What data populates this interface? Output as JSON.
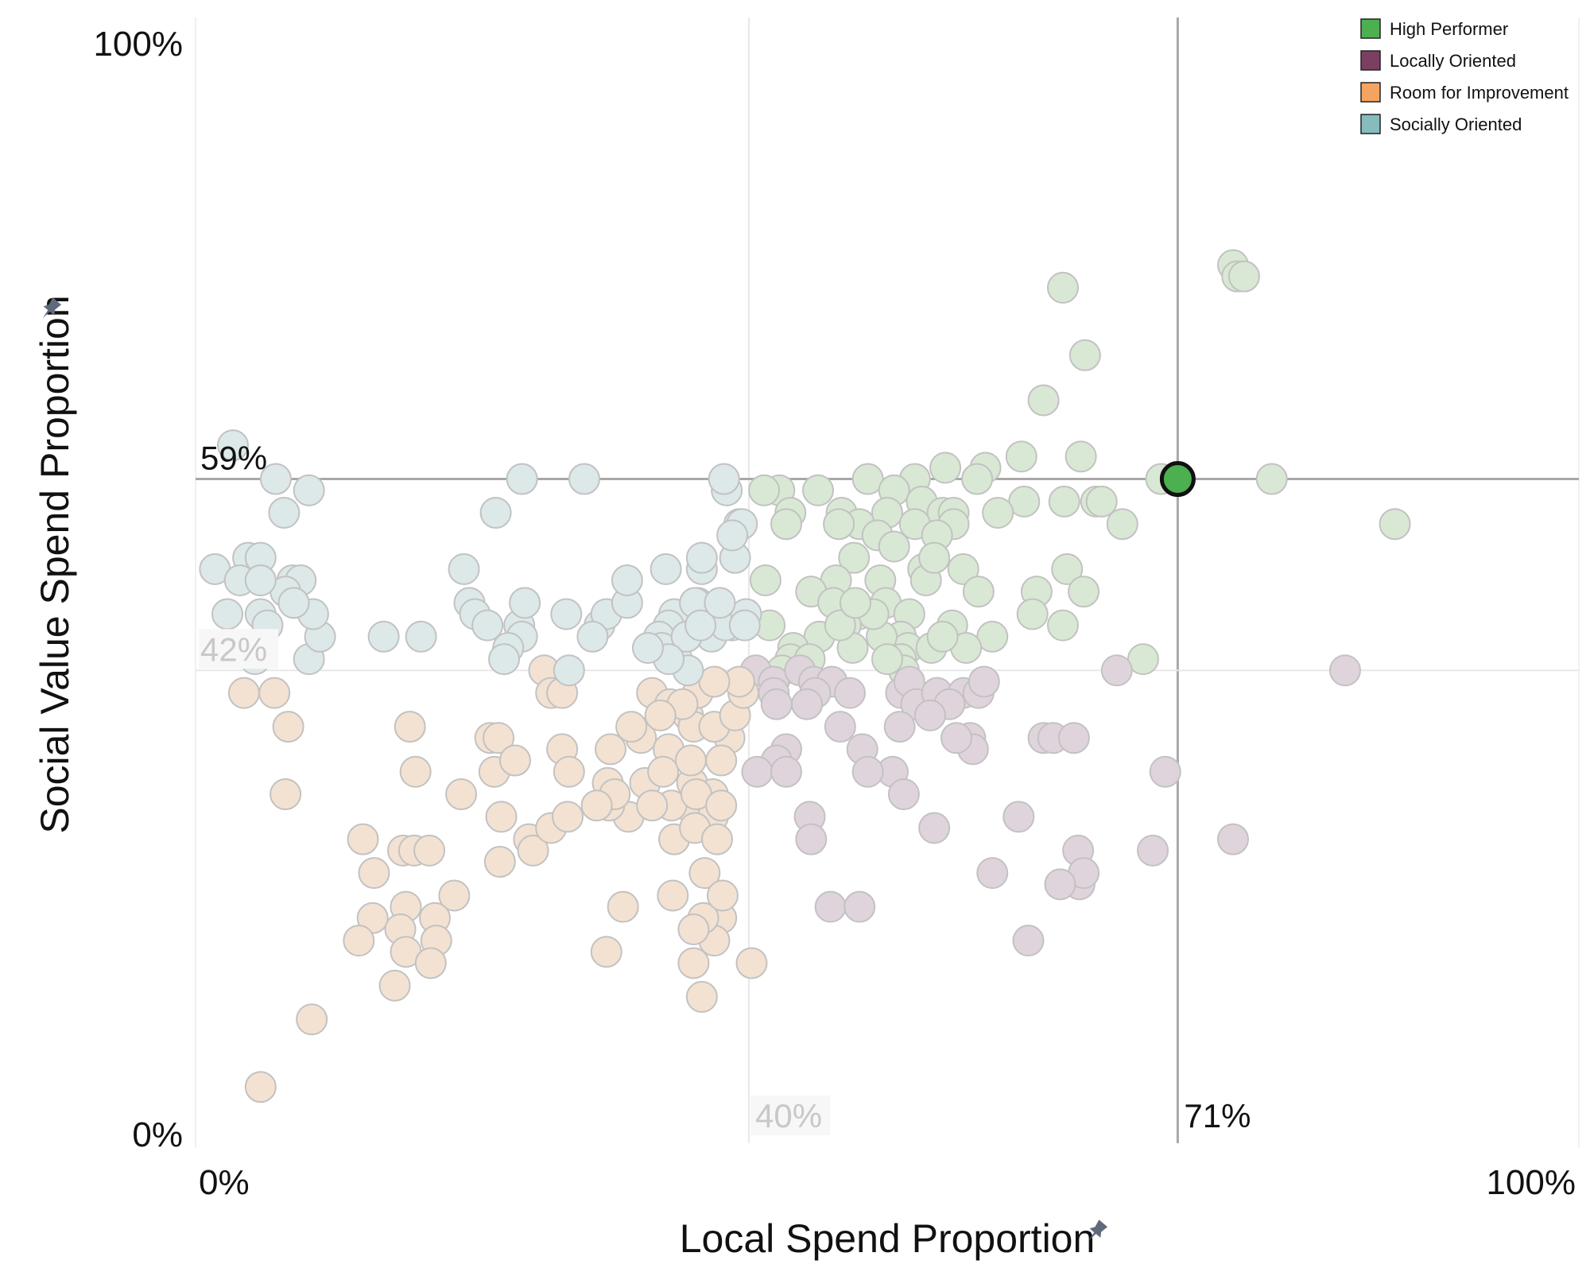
{
  "chart_data": {
    "type": "scatter",
    "xlabel": "Local Spend Proportion",
    "ylabel": "Social Value Spend Proportion",
    "xlim": [
      0,
      1
    ],
    "ylim": [
      0,
      1
    ],
    "x_ticks": [
      {
        "value": 0,
        "label": "0%"
      },
      {
        "value": 1,
        "label": "100%"
      }
    ],
    "y_ticks": [
      {
        "value": 0,
        "label": "0%"
      },
      {
        "value": 1,
        "label": "100%"
      }
    ],
    "reference_lines": {
      "vertical": [
        {
          "value": 0.4,
          "label": "40%",
          "style": "faint"
        },
        {
          "value": 0.71,
          "label": "71%",
          "style": "strong"
        }
      ],
      "horizontal": [
        {
          "value": 0.42,
          "label": "42%",
          "style": "faint"
        },
        {
          "value": 0.59,
          "label": "59%",
          "style": "strong"
        }
      ]
    },
    "legend": {
      "position": "top-right",
      "entries": [
        {
          "name": "High Performer",
          "color": "#4caf50"
        },
        {
          "name": "Locally Oriented",
          "color": "#7b3f61"
        },
        {
          "name": "Room for Improvement",
          "color": "#f4a460"
        },
        {
          "name": "Socially Oriented",
          "color": "#86bcbd"
        }
      ]
    },
    "highlight": {
      "x": 0.71,
      "y": 0.59,
      "category": "High Performer",
      "color": "#4caf50"
    },
    "faded_colors": {
      "High Performer": "#d9e8d4",
      "Locally Oriented": "#e0d4dc",
      "Room for Improvement": "#f3e2d2",
      "Socially Oriented": "#dde8e9"
    },
    "series": [
      {
        "name": "High Performer",
        "points": [
          [
            0.75,
            0.78
          ],
          [
            0.753,
            0.77
          ],
          [
            0.758,
            0.77
          ],
          [
            0.627,
            0.76
          ],
          [
            0.643,
            0.7
          ],
          [
            0.613,
            0.66
          ],
          [
            0.64,
            0.61
          ],
          [
            0.597,
            0.61
          ],
          [
            0.571,
            0.6
          ],
          [
            0.565,
            0.59
          ],
          [
            0.542,
            0.6
          ],
          [
            0.52,
            0.59
          ],
          [
            0.486,
            0.59
          ],
          [
            0.505,
            0.58
          ],
          [
            0.778,
            0.59
          ],
          [
            0.698,
            0.59
          ],
          [
            0.867,
            0.55
          ],
          [
            0.651,
            0.57
          ],
          [
            0.655,
            0.57
          ],
          [
            0.67,
            0.55
          ],
          [
            0.599,
            0.57
          ],
          [
            0.628,
            0.57
          ],
          [
            0.58,
            0.56
          ],
          [
            0.525,
            0.57
          ],
          [
            0.54,
            0.56
          ],
          [
            0.45,
            0.58
          ],
          [
            0.422,
            0.58
          ],
          [
            0.411,
            0.58
          ],
          [
            0.43,
            0.56
          ],
          [
            0.467,
            0.56
          ],
          [
            0.48,
            0.55
          ],
          [
            0.5,
            0.56
          ],
          [
            0.52,
            0.55
          ],
          [
            0.548,
            0.56
          ],
          [
            0.548,
            0.55
          ],
          [
            0.536,
            0.54
          ],
          [
            0.465,
            0.55
          ],
          [
            0.427,
            0.55
          ],
          [
            0.493,
            0.54
          ],
          [
            0.505,
            0.53
          ],
          [
            0.476,
            0.52
          ],
          [
            0.495,
            0.5
          ],
          [
            0.463,
            0.5
          ],
          [
            0.412,
            0.5
          ],
          [
            0.445,
            0.49
          ],
          [
            0.461,
            0.48
          ],
          [
            0.48,
            0.47
          ],
          [
            0.499,
            0.48
          ],
          [
            0.526,
            0.51
          ],
          [
            0.528,
            0.5
          ],
          [
            0.534,
            0.52
          ],
          [
            0.555,
            0.51
          ],
          [
            0.566,
            0.49
          ],
          [
            0.608,
            0.49
          ],
          [
            0.63,
            0.51
          ],
          [
            0.642,
            0.49
          ],
          [
            0.576,
            0.45
          ],
          [
            0.605,
            0.47
          ],
          [
            0.627,
            0.46
          ],
          [
            0.547,
            0.46
          ],
          [
            0.516,
            0.47
          ],
          [
            0.51,
            0.45
          ],
          [
            0.515,
            0.44
          ],
          [
            0.496,
            0.45
          ],
          [
            0.49,
            0.47
          ],
          [
            0.47,
            0.46
          ],
          [
            0.451,
            0.45
          ],
          [
            0.432,
            0.44
          ],
          [
            0.43,
            0.43
          ],
          [
            0.415,
            0.46
          ],
          [
            0.475,
            0.44
          ],
          [
            0.466,
            0.46
          ],
          [
            0.557,
            0.44
          ],
          [
            0.532,
            0.44
          ],
          [
            0.51,
            0.43
          ],
          [
            0.685,
            0.43
          ],
          [
            0.512,
            0.42
          ],
          [
            0.424,
            0.42
          ],
          [
            0.444,
            0.43
          ],
          [
            0.5,
            0.43
          ],
          [
            0.54,
            0.45
          ],
          [
            0.477,
            0.48
          ]
        ]
      },
      {
        "name": "Locally Oriented",
        "points": [
          [
            0.831,
            0.42
          ],
          [
            0.666,
            0.42
          ],
          [
            0.405,
            0.42
          ],
          [
            0.418,
            0.41
          ],
          [
            0.437,
            0.42
          ],
          [
            0.447,
            0.41
          ],
          [
            0.46,
            0.41
          ],
          [
            0.448,
            0.4
          ],
          [
            0.418,
            0.4
          ],
          [
            0.42,
            0.39
          ],
          [
            0.442,
            0.39
          ],
          [
            0.473,
            0.4
          ],
          [
            0.51,
            0.4
          ],
          [
            0.516,
            0.41
          ],
          [
            0.521,
            0.39
          ],
          [
            0.536,
            0.4
          ],
          [
            0.555,
            0.4
          ],
          [
            0.566,
            0.4
          ],
          [
            0.545,
            0.39
          ],
          [
            0.57,
            0.41
          ],
          [
            0.531,
            0.38
          ],
          [
            0.509,
            0.37
          ],
          [
            0.466,
            0.37
          ],
          [
            0.56,
            0.36
          ],
          [
            0.562,
            0.35
          ],
          [
            0.55,
            0.36
          ],
          [
            0.613,
            0.36
          ],
          [
            0.62,
            0.36
          ],
          [
            0.635,
            0.36
          ],
          [
            0.701,
            0.33
          ],
          [
            0.427,
            0.35
          ],
          [
            0.482,
            0.35
          ],
          [
            0.504,
            0.33
          ],
          [
            0.42,
            0.34
          ],
          [
            0.406,
            0.33
          ],
          [
            0.427,
            0.33
          ],
          [
            0.486,
            0.33
          ],
          [
            0.512,
            0.31
          ],
          [
            0.534,
            0.28
          ],
          [
            0.595,
            0.29
          ],
          [
            0.638,
            0.26
          ],
          [
            0.692,
            0.26
          ],
          [
            0.75,
            0.27
          ],
          [
            0.444,
            0.29
          ],
          [
            0.445,
            0.27
          ],
          [
            0.639,
            0.23
          ],
          [
            0.576,
            0.24
          ],
          [
            0.642,
            0.24
          ],
          [
            0.625,
            0.23
          ],
          [
            0.459,
            0.21
          ],
          [
            0.48,
            0.21
          ],
          [
            0.602,
            0.18
          ]
        ]
      },
      {
        "name": "Room for Improvement",
        "points": [
          [
            0.252,
            0.42
          ],
          [
            0.257,
            0.4
          ],
          [
            0.035,
            0.4
          ],
          [
            0.057,
            0.4
          ],
          [
            0.067,
            0.37
          ],
          [
            0.065,
            0.31
          ],
          [
            0.155,
            0.37
          ],
          [
            0.159,
            0.33
          ],
          [
            0.213,
            0.36
          ],
          [
            0.219,
            0.36
          ],
          [
            0.216,
            0.33
          ],
          [
            0.231,
            0.34
          ],
          [
            0.192,
            0.31
          ],
          [
            0.221,
            0.29
          ],
          [
            0.241,
            0.27
          ],
          [
            0.244,
            0.26
          ],
          [
            0.22,
            0.25
          ],
          [
            0.121,
            0.27
          ],
          [
            0.129,
            0.24
          ],
          [
            0.15,
            0.26
          ],
          [
            0.158,
            0.26
          ],
          [
            0.169,
            0.26
          ],
          [
            0.187,
            0.22
          ],
          [
            0.128,
            0.2
          ],
          [
            0.152,
            0.21
          ],
          [
            0.173,
            0.2
          ],
          [
            0.118,
            0.18
          ],
          [
            0.148,
            0.19
          ],
          [
            0.174,
            0.18
          ],
          [
            0.152,
            0.17
          ],
          [
            0.17,
            0.16
          ],
          [
            0.144,
            0.14
          ],
          [
            0.084,
            0.11
          ],
          [
            0.047,
            0.05
          ],
          [
            0.33,
            0.4
          ],
          [
            0.343,
            0.39
          ],
          [
            0.356,
            0.38
          ],
          [
            0.36,
            0.37
          ],
          [
            0.322,
            0.36
          ],
          [
            0.342,
            0.35
          ],
          [
            0.3,
            0.35
          ],
          [
            0.265,
            0.35
          ],
          [
            0.27,
            0.33
          ],
          [
            0.298,
            0.32
          ],
          [
            0.325,
            0.32
          ],
          [
            0.359,
            0.32
          ],
          [
            0.374,
            0.31
          ],
          [
            0.356,
            0.3
          ],
          [
            0.374,
            0.29
          ],
          [
            0.344,
            0.3
          ],
          [
            0.313,
            0.29
          ],
          [
            0.299,
            0.3
          ],
          [
            0.33,
            0.3
          ],
          [
            0.346,
            0.27
          ],
          [
            0.257,
            0.28
          ],
          [
            0.269,
            0.29
          ],
          [
            0.386,
            0.36
          ],
          [
            0.375,
            0.37
          ],
          [
            0.39,
            0.38
          ],
          [
            0.396,
            0.4
          ],
          [
            0.393,
            0.41
          ],
          [
            0.363,
            0.4
          ],
          [
            0.375,
            0.41
          ],
          [
            0.352,
            0.39
          ],
          [
            0.309,
            0.21
          ],
          [
            0.297,
            0.17
          ],
          [
            0.345,
            0.22
          ],
          [
            0.38,
            0.2
          ],
          [
            0.375,
            0.18
          ],
          [
            0.367,
            0.2
          ],
          [
            0.36,
            0.19
          ],
          [
            0.36,
            0.16
          ],
          [
            0.402,
            0.16
          ],
          [
            0.366,
            0.13
          ],
          [
            0.368,
            0.24
          ],
          [
            0.381,
            0.22
          ],
          [
            0.361,
            0.28
          ],
          [
            0.377,
            0.27
          ],
          [
            0.362,
            0.31
          ],
          [
            0.38,
            0.3
          ],
          [
            0.338,
            0.33
          ],
          [
            0.358,
            0.34
          ],
          [
            0.38,
            0.34
          ],
          [
            0.336,
            0.38
          ],
          [
            0.303,
            0.31
          ],
          [
            0.29,
            0.3
          ],
          [
            0.315,
            0.37
          ],
          [
            0.265,
            0.4
          ]
        ]
      },
      {
        "name": "Socially Oriented",
        "points": [
          [
            0.027,
            0.62
          ],
          [
            0.058,
            0.59
          ],
          [
            0.082,
            0.58
          ],
          [
            0.236,
            0.59
          ],
          [
            0.281,
            0.59
          ],
          [
            0.217,
            0.56
          ],
          [
            0.384,
            0.58
          ],
          [
            0.382,
            0.59
          ],
          [
            0.393,
            0.55
          ],
          [
            0.39,
            0.52
          ],
          [
            0.014,
            0.51
          ],
          [
            0.038,
            0.52
          ],
          [
            0.047,
            0.52
          ],
          [
            0.032,
            0.5
          ],
          [
            0.047,
            0.5
          ],
          [
            0.07,
            0.5
          ],
          [
            0.076,
            0.5
          ],
          [
            0.065,
            0.49
          ],
          [
            0.023,
            0.47
          ],
          [
            0.047,
            0.47
          ],
          [
            0.052,
            0.46
          ],
          [
            0.082,
            0.43
          ],
          [
            0.043,
            0.43
          ],
          [
            0.194,
            0.51
          ],
          [
            0.198,
            0.48
          ],
          [
            0.202,
            0.47
          ],
          [
            0.211,
            0.46
          ],
          [
            0.234,
            0.46
          ],
          [
            0.236,
            0.45
          ],
          [
            0.226,
            0.44
          ],
          [
            0.223,
            0.43
          ],
          [
            0.268,
            0.47
          ],
          [
            0.292,
            0.46
          ],
          [
            0.297,
            0.47
          ],
          [
            0.312,
            0.48
          ],
          [
            0.312,
            0.5
          ],
          [
            0.34,
            0.51
          ],
          [
            0.366,
            0.51
          ],
          [
            0.363,
            0.48
          ],
          [
            0.365,
            0.47
          ],
          [
            0.373,
            0.45
          ],
          [
            0.388,
            0.46
          ],
          [
            0.383,
            0.46
          ],
          [
            0.398,
            0.47
          ],
          [
            0.397,
            0.46
          ],
          [
            0.346,
            0.47
          ],
          [
            0.342,
            0.46
          ],
          [
            0.335,
            0.45
          ],
          [
            0.337,
            0.44
          ],
          [
            0.348,
            0.43
          ],
          [
            0.355,
            0.45
          ],
          [
            0.361,
            0.48
          ],
          [
            0.365,
            0.46
          ],
          [
            0.379,
            0.48
          ],
          [
            0.366,
            0.52
          ],
          [
            0.395,
            0.55
          ],
          [
            0.388,
            0.54
          ],
          [
            0.356,
            0.42
          ],
          [
            0.342,
            0.43
          ],
          [
            0.327,
            0.44
          ],
          [
            0.287,
            0.45
          ],
          [
            0.27,
            0.42
          ],
          [
            0.163,
            0.45
          ],
          [
            0.136,
            0.45
          ],
          [
            0.238,
            0.48
          ],
          [
            0.09,
            0.45
          ],
          [
            0.064,
            0.56
          ],
          [
            0.085,
            0.47
          ],
          [
            0.071,
            0.48
          ],
          [
            0.047,
            0.5
          ]
        ]
      }
    ]
  }
}
